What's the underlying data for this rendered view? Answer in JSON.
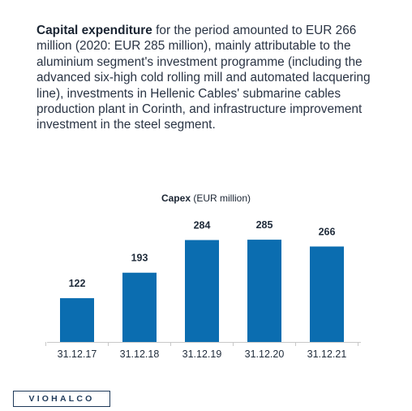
{
  "intro": {
    "lead": "Capital expenditure",
    "text": " for the period amounted to EUR 266 million (2020: EUR 285 million), mainly attributable to the aluminium segment's investment programme (including the advanced six-high cold rolling mill and automated lacquering line), investments in Hellenic Cables' submarine cables production plant in Corinth, and infrastructure improvement investment in the steel segment."
  },
  "chart_title": {
    "bold": "Capex",
    "rest": " (EUR million)"
  },
  "chart_data": {
    "type": "bar",
    "title": "Capex (EUR million)",
    "categories": [
      "31.12.17",
      "31.12.18",
      "31.12.19",
      "31.12.20",
      "31.12.21"
    ],
    "values": [
      122,
      193,
      284,
      285,
      266
    ],
    "ylim": [
      0,
      300
    ],
    "grid": false,
    "bar_color": "#0b6db0",
    "xlabel": "",
    "ylabel": ""
  },
  "logo": {
    "text": "VIOHALCO"
  },
  "colors": {
    "bar": "#0b6db0",
    "axis": "#c8c8c8",
    "label": "#1f2b3a",
    "brand": "#1f3a5a"
  }
}
